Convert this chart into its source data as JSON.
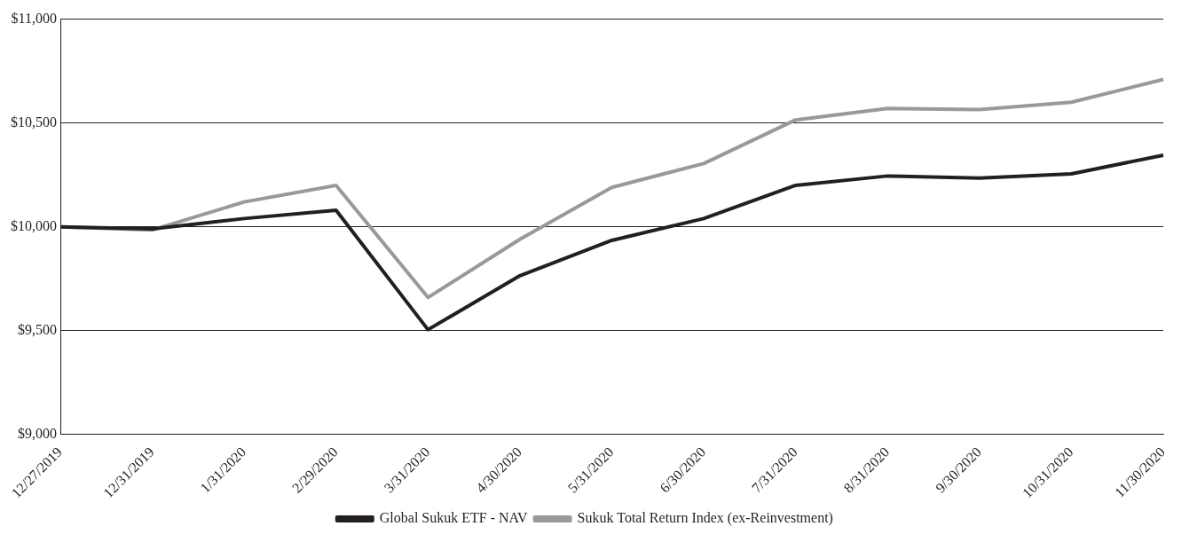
{
  "chart_data": {
    "type": "line",
    "categories": [
      "12/27/2019",
      "12/31/2019",
      "1/31/2020",
      "2/29/2020",
      "3/31/2020",
      "4/30/2020",
      "5/31/2020",
      "6/30/2020",
      "7/31/2020",
      "8/31/2020",
      "9/30/2020",
      "10/31/2020",
      "11/30/2020"
    ],
    "series": [
      {
        "name": "Global Sukuk ETF - NAV",
        "color": "#231f20",
        "values": [
          10000,
          9990,
          10040,
          10080,
          9505,
          9765,
          9935,
          10040,
          10200,
          10245,
          10235,
          10255,
          10345
        ]
      },
      {
        "name": "Sukuk Total Return Index (ex-Reinvestment)",
        "color": "#999999",
        "values": [
          10000,
          9985,
          10120,
          10200,
          9660,
          9940,
          10190,
          10305,
          10515,
          10570,
          10565,
          10600,
          10710
        ]
      }
    ],
    "ylim": [
      9000,
      11000
    ],
    "yticks": [
      {
        "value": 9000,
        "label": "$9,000"
      },
      {
        "value": 9500,
        "label": "$9,500"
      },
      {
        "value": 10000,
        "label": "$10,000"
      },
      {
        "value": 10500,
        "label": "$10,500"
      },
      {
        "value": 11000,
        "label": "$11,000"
      }
    ],
    "grid": "y",
    "legend": "bottom",
    "marker": "none",
    "line_style": "solid"
  }
}
